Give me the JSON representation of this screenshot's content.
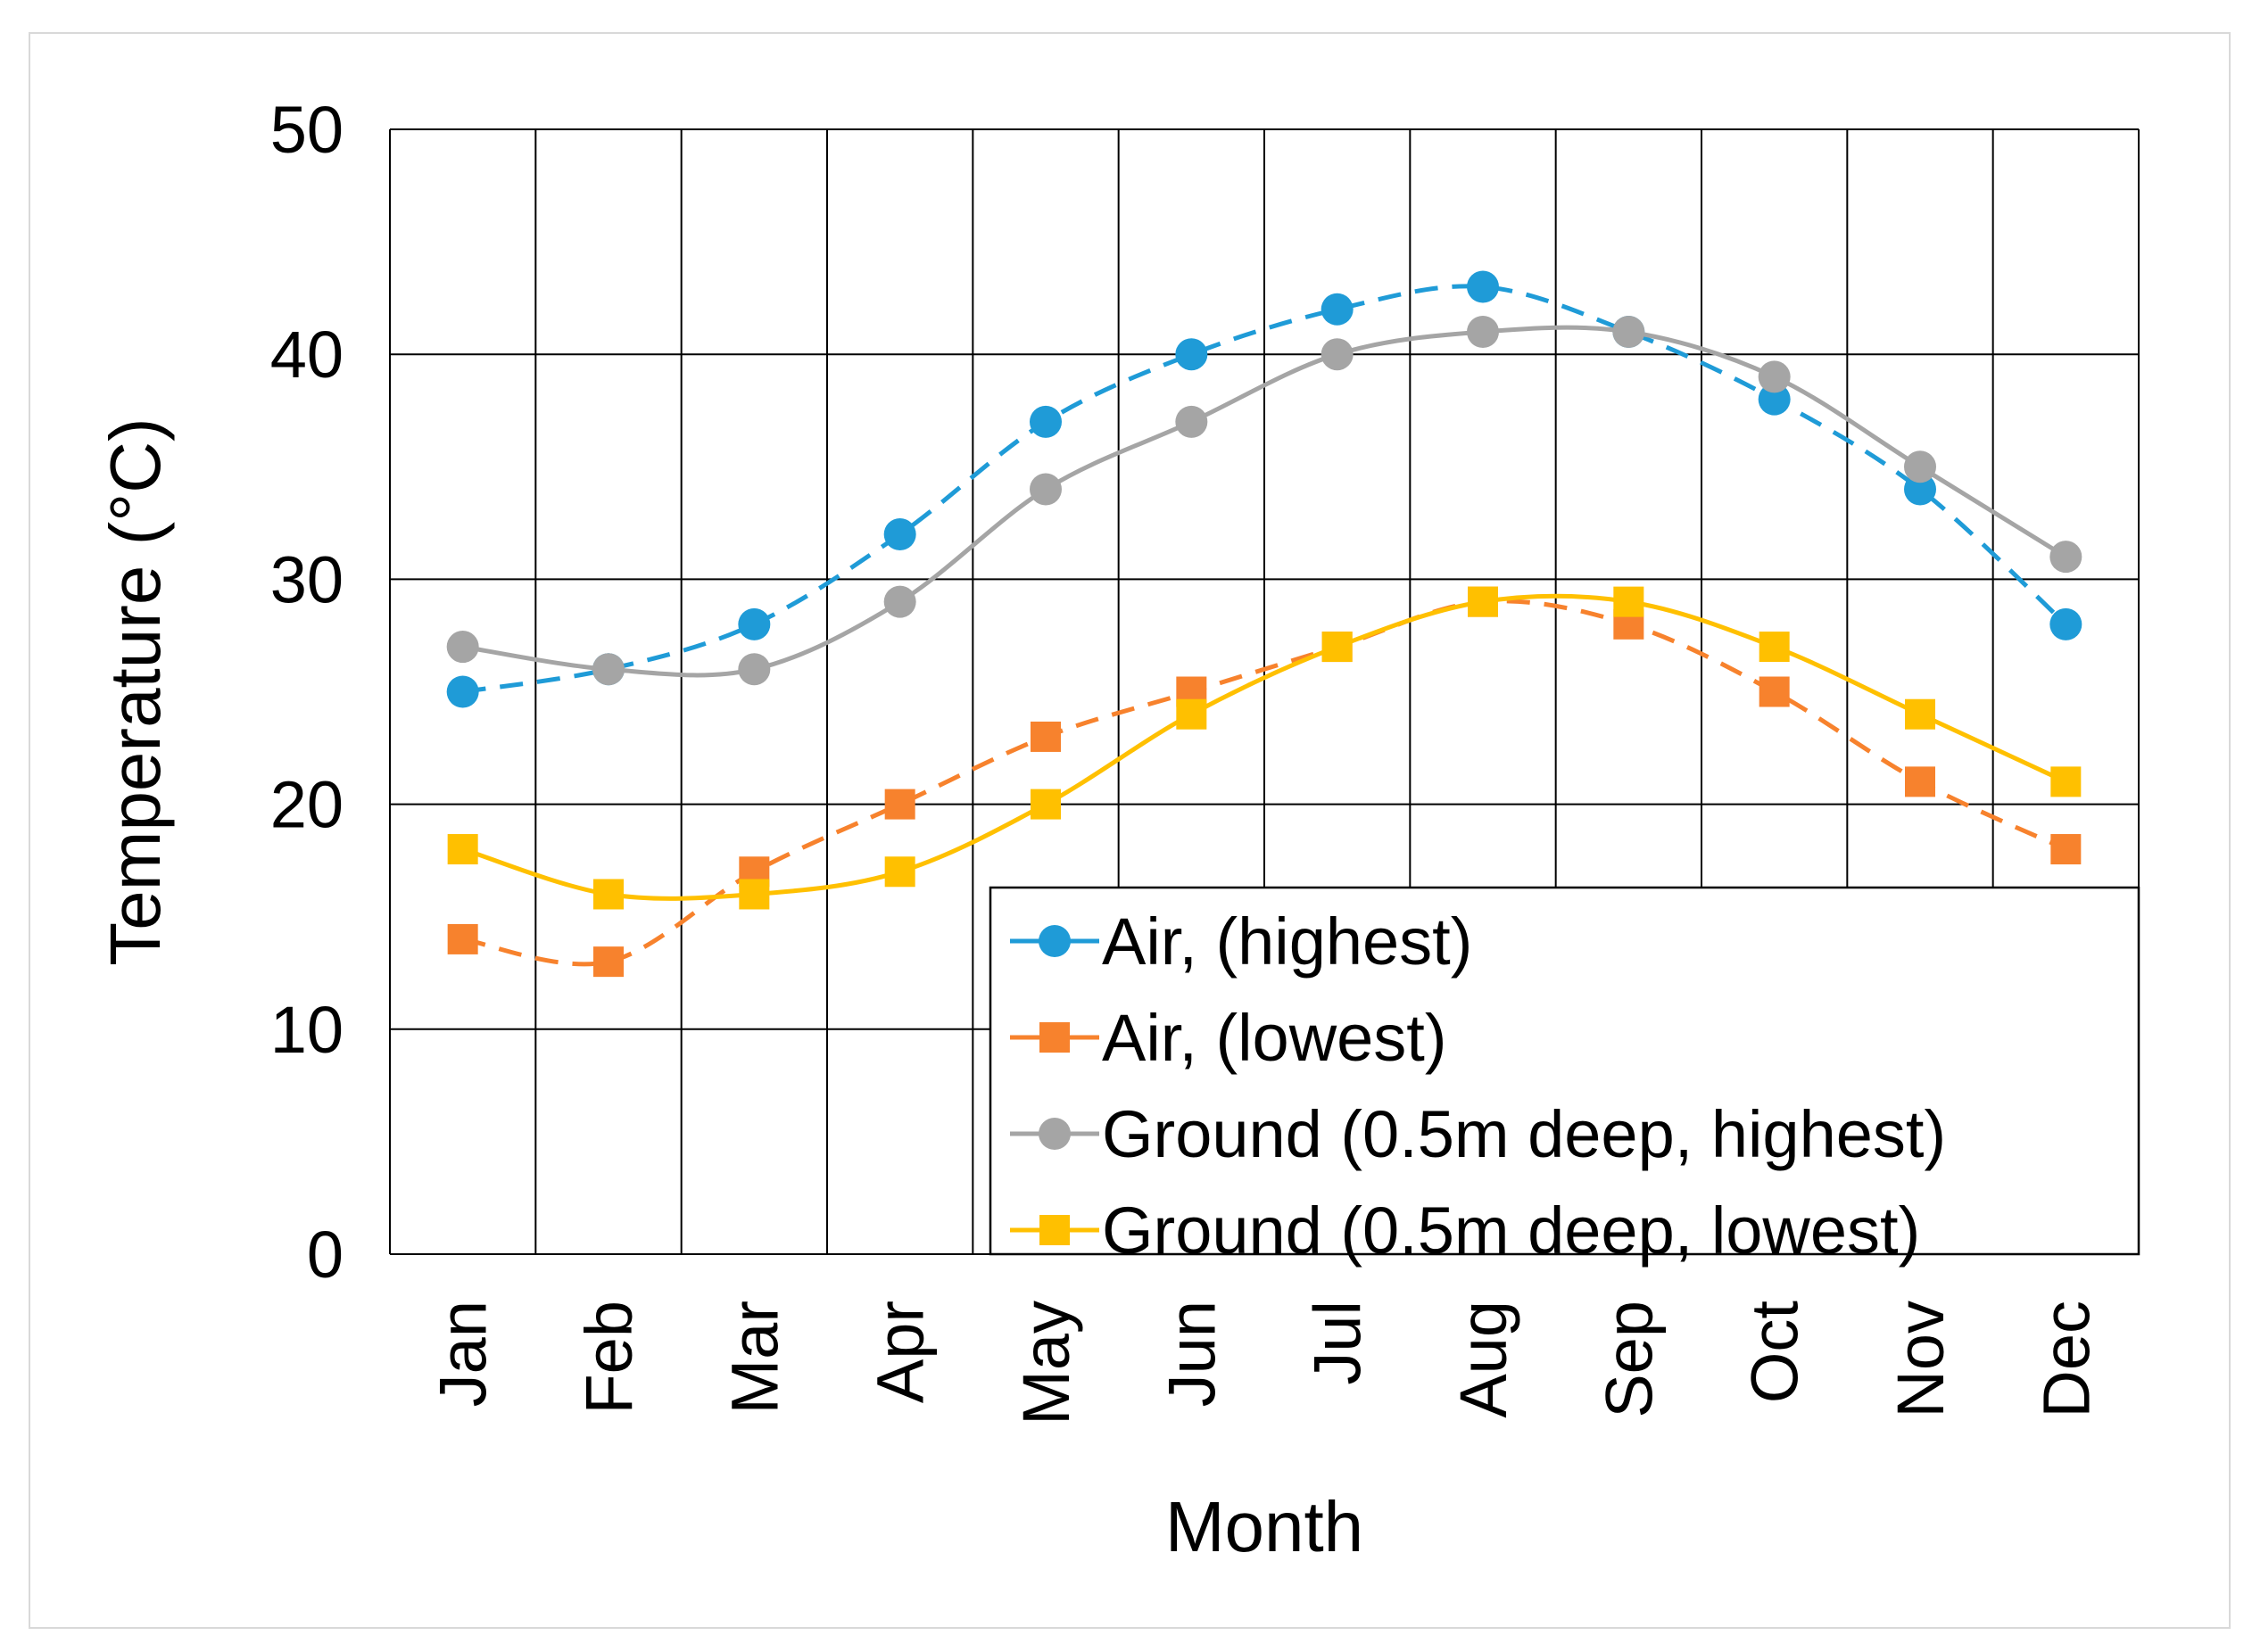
{
  "chart_data": {
    "type": "line",
    "title": "",
    "xlabel": "Month",
    "ylabel": "Temperature (°C)",
    "categories": [
      "Jan",
      "Feb",
      "Mar",
      "Apr",
      "May",
      "Jun",
      "Jul",
      "Aug",
      "Sep",
      "Oct",
      "Nov",
      "Dec"
    ],
    "ylim": [
      0,
      50
    ],
    "yticks": [
      "0",
      "10",
      "20",
      "30",
      "40",
      "50"
    ],
    "grid": true,
    "legend_position": "bottom-right",
    "series": [
      {
        "name": "Air, (highest)",
        "values": [
          25,
          26,
          28,
          32,
          37,
          40,
          42,
          43,
          41,
          38,
          34,
          28
        ],
        "color": "#1f9bd7",
        "marker": "circle",
        "line_style": "dashed"
      },
      {
        "name": "Air, (lowest)",
        "values": [
          14,
          13,
          17,
          20,
          23,
          25,
          27,
          29,
          28,
          25,
          21,
          18
        ],
        "color": "#f7822d",
        "marker": "square",
        "line_style": "dashed"
      },
      {
        "name": "Ground (0.5m deep, highest)",
        "values": [
          27,
          26,
          26,
          29,
          34,
          37,
          40,
          41,
          41,
          39,
          35,
          31
        ],
        "color": "#a5a5a5",
        "marker": "circle",
        "line_style": "solid"
      },
      {
        "name": "Ground (0.5m deep, lowest)",
        "values": [
          18,
          16,
          16,
          17,
          20,
          24,
          27,
          29,
          29,
          27,
          24,
          21
        ],
        "color": "#ffc000",
        "marker": "square",
        "line_style": "solid"
      }
    ]
  }
}
